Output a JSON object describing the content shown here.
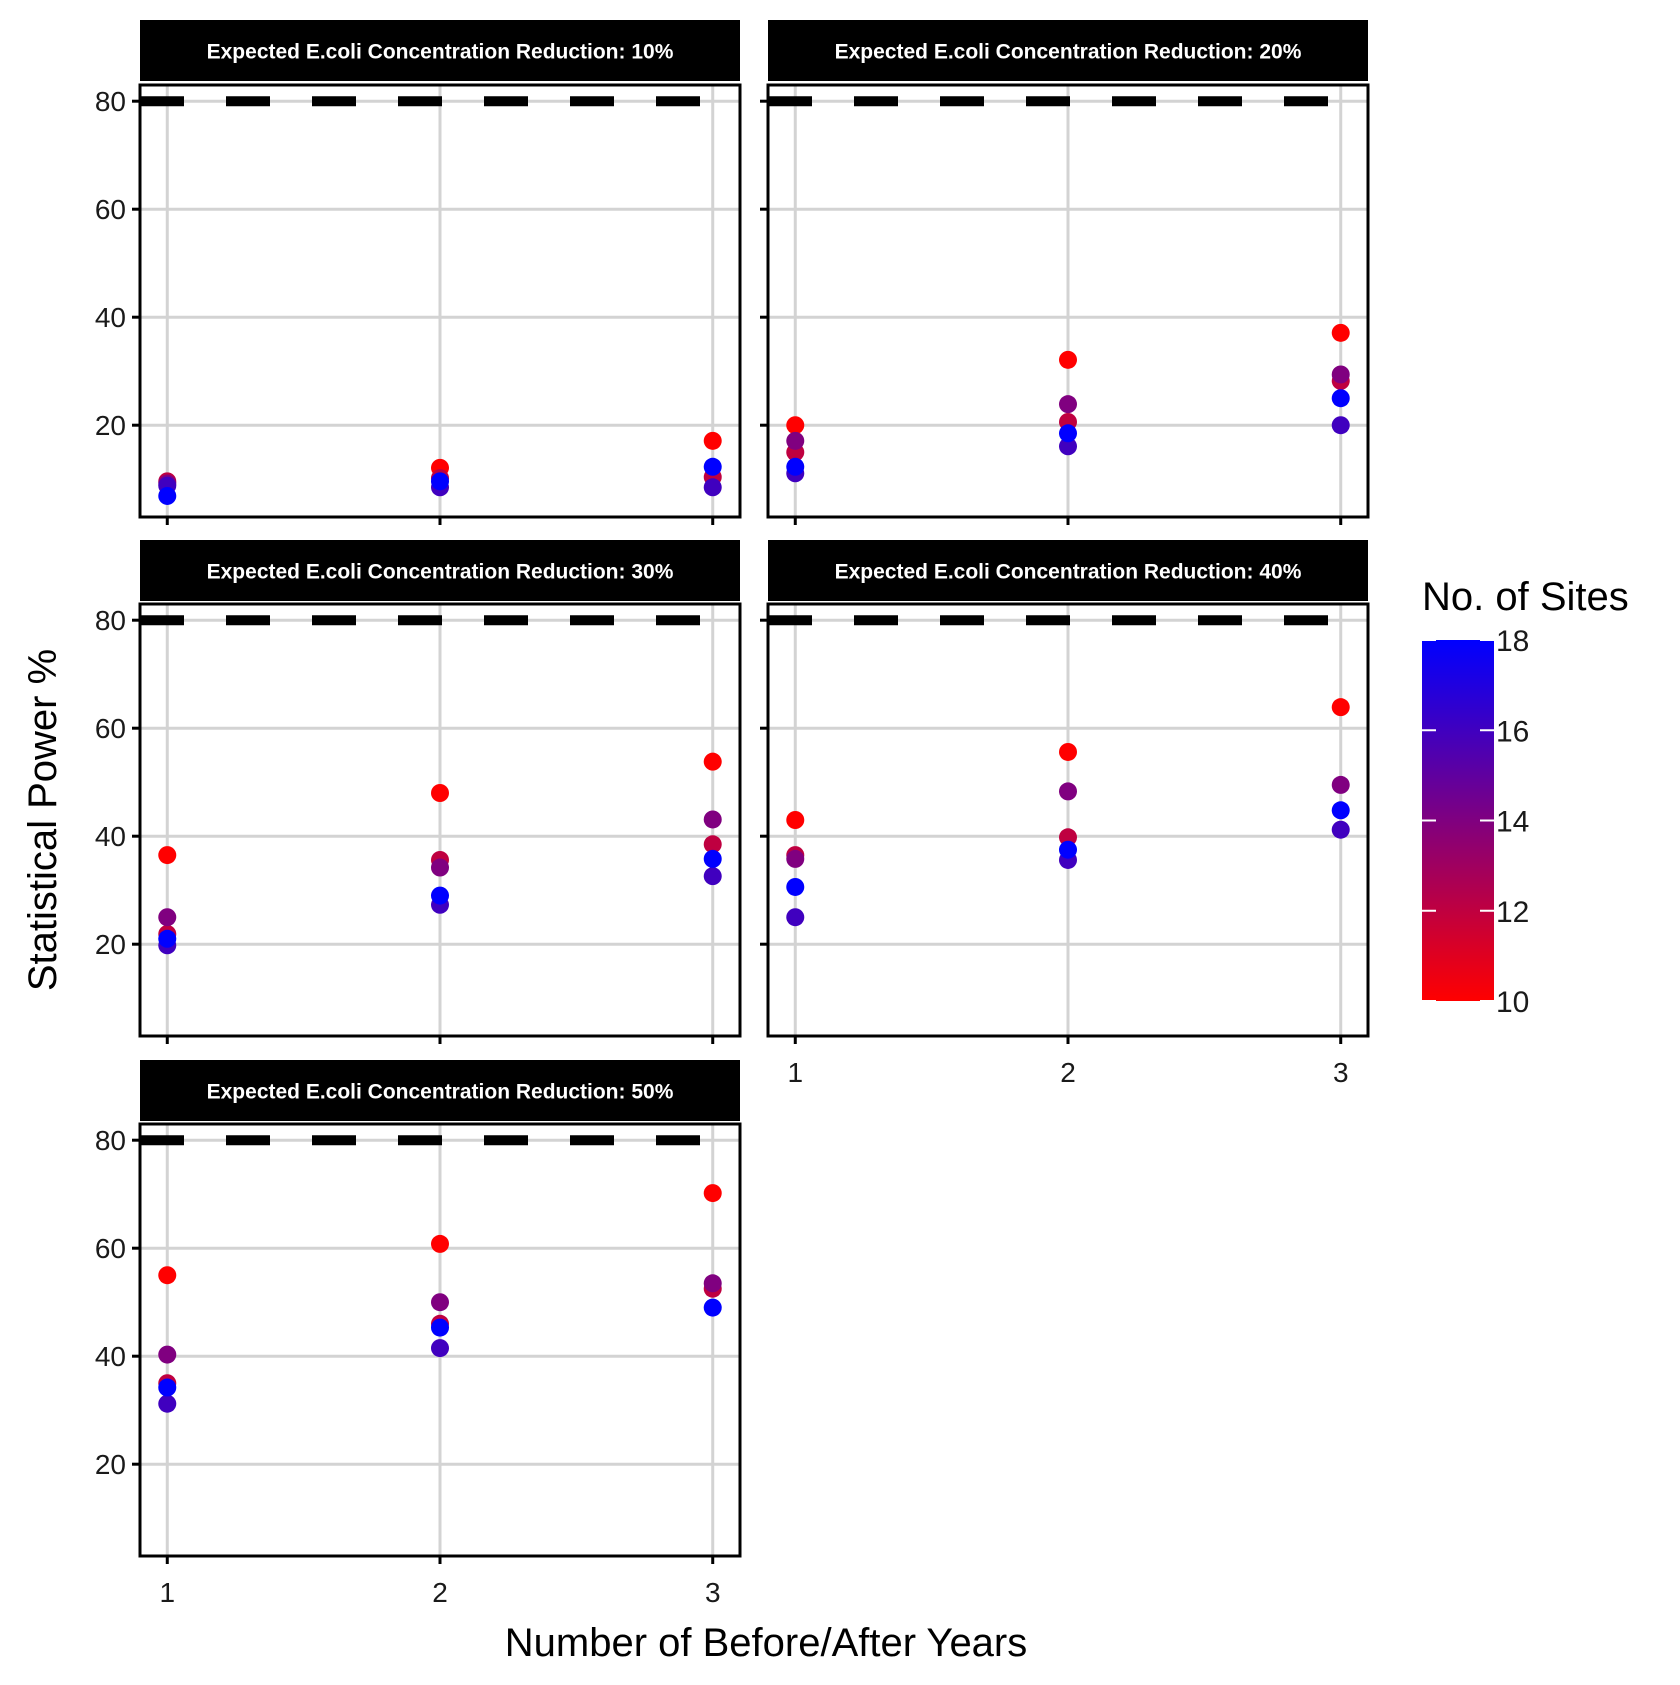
{
  "chart_data": {
    "type": "scatter",
    "facets": {
      "layout": "3 rows x 2 columns, wrapped (5 panels)",
      "panels": [
        {
          "title": "Expected E.coli Concentration Reduction: 10%",
          "points": [
            {
              "x": 1,
              "y": 9.6,
              "sites": 12
            },
            {
              "x": 1,
              "y": 9.2,
              "sites": 14
            },
            {
              "x": 1,
              "y": 8.8,
              "sites": 16
            },
            {
              "x": 1,
              "y": 6.9,
              "sites": 18
            },
            {
              "x": 2,
              "y": 12.1,
              "sites": 10
            },
            {
              "x": 2,
              "y": 10.2,
              "sites": 12
            },
            {
              "x": 2,
              "y": 8.5,
              "sites": 16
            },
            {
              "x": 2,
              "y": 9.6,
              "sites": 18
            },
            {
              "x": 3,
              "y": 17.1,
              "sites": 10
            },
            {
              "x": 3,
              "y": 10.4,
              "sites": 12
            },
            {
              "x": 3,
              "y": 8.5,
              "sites": 16
            },
            {
              "x": 3,
              "y": 12.3,
              "sites": 18
            }
          ]
        },
        {
          "title": "Expected E.coli Concentration Reduction: 20%",
          "points": [
            {
              "x": 1,
              "y": 20.0,
              "sites": 10
            },
            {
              "x": 1,
              "y": 15.0,
              "sites": 12
            },
            {
              "x": 1,
              "y": 17.1,
              "sites": 14
            },
            {
              "x": 1,
              "y": 11.1,
              "sites": 16
            },
            {
              "x": 1,
              "y": 12.3,
              "sites": 18
            },
            {
              "x": 2,
              "y": 32.1,
              "sites": 10
            },
            {
              "x": 2,
              "y": 20.6,
              "sites": 12
            },
            {
              "x": 2,
              "y": 23.9,
              "sites": 14
            },
            {
              "x": 2,
              "y": 16.1,
              "sites": 16
            },
            {
              "x": 2,
              "y": 18.5,
              "sites": 18
            },
            {
              "x": 3,
              "y": 37.1,
              "sites": 10
            },
            {
              "x": 3,
              "y": 28.2,
              "sites": 12
            },
            {
              "x": 3,
              "y": 29.4,
              "sites": 14
            },
            {
              "x": 3,
              "y": 20.0,
              "sites": 16
            },
            {
              "x": 3,
              "y": 25.0,
              "sites": 18
            }
          ]
        },
        {
          "title": "Expected E.coli Concentration Reduction: 30%",
          "points": [
            {
              "x": 1,
              "y": 36.5,
              "sites": 10
            },
            {
              "x": 1,
              "y": 21.9,
              "sites": 12
            },
            {
              "x": 1,
              "y": 25.0,
              "sites": 14
            },
            {
              "x": 1,
              "y": 19.8,
              "sites": 16
            },
            {
              "x": 1,
              "y": 21.0,
              "sites": 18
            },
            {
              "x": 2,
              "y": 48.0,
              "sites": 10
            },
            {
              "x": 2,
              "y": 35.6,
              "sites": 12
            },
            {
              "x": 2,
              "y": 34.2,
              "sites": 14
            },
            {
              "x": 2,
              "y": 27.3,
              "sites": 16
            },
            {
              "x": 2,
              "y": 29.0,
              "sites": 18
            },
            {
              "x": 3,
              "y": 53.8,
              "sites": 10
            },
            {
              "x": 3,
              "y": 38.5,
              "sites": 12
            },
            {
              "x": 3,
              "y": 43.1,
              "sites": 14
            },
            {
              "x": 3,
              "y": 32.6,
              "sites": 16
            },
            {
              "x": 3,
              "y": 35.8,
              "sites": 18
            }
          ]
        },
        {
          "title": "Expected E.coli Concentration Reduction: 40%",
          "points": [
            {
              "x": 1,
              "y": 43.0,
              "sites": 10
            },
            {
              "x": 1,
              "y": 36.5,
              "sites": 12
            },
            {
              "x": 1,
              "y": 35.8,
              "sites": 14
            },
            {
              "x": 1,
              "y": 25.0,
              "sites": 16
            },
            {
              "x": 1,
              "y": 30.6,
              "sites": 18
            },
            {
              "x": 2,
              "y": 55.6,
              "sites": 10
            },
            {
              "x": 2,
              "y": 39.8,
              "sites": 12
            },
            {
              "x": 2,
              "y": 48.3,
              "sites": 14
            },
            {
              "x": 2,
              "y": 35.6,
              "sites": 16
            },
            {
              "x": 2,
              "y": 37.5,
              "sites": 18
            },
            {
              "x": 3,
              "y": 63.9,
              "sites": 10
            },
            {
              "x": 3,
              "y": 49.5,
              "sites": 14
            },
            {
              "x": 3,
              "y": 41.2,
              "sites": 16
            },
            {
              "x": 3,
              "y": 44.8,
              "sites": 18
            }
          ]
        },
        {
          "title": "Expected E.coli Concentration Reduction: 50%",
          "points": [
            {
              "x": 1,
              "y": 55.0,
              "sites": 10
            },
            {
              "x": 1,
              "y": 35.0,
              "sites": 12
            },
            {
              "x": 1,
              "y": 40.3,
              "sites": 14
            },
            {
              "x": 1,
              "y": 31.2,
              "sites": 16
            },
            {
              "x": 1,
              "y": 34.2,
              "sites": 18
            },
            {
              "x": 2,
              "y": 60.8,
              "sites": 10
            },
            {
              "x": 2,
              "y": 46.0,
              "sites": 12
            },
            {
              "x": 2,
              "y": 50.0,
              "sites": 14
            },
            {
              "x": 2,
              "y": 41.5,
              "sites": 16
            },
            {
              "x": 2,
              "y": 45.3,
              "sites": 18
            },
            {
              "x": 3,
              "y": 70.2,
              "sites": 10
            },
            {
              "x": 3,
              "y": 52.5,
              "sites": 12
            },
            {
              "x": 3,
              "y": 53.5,
              "sites": 14
            },
            {
              "x": 3,
              "y": 49.0,
              "sites": 18
            }
          ]
        }
      ]
    },
    "xlabel": "Number of Before/After Years",
    "ylabel": "Statistical Power %",
    "x_ticks": [
      1,
      2,
      3
    ],
    "y_ticks": [
      20,
      40,
      60,
      80
    ],
    "ylim": [
      3,
      83
    ],
    "xlim": [
      0.9,
      3.1
    ],
    "reference_line": {
      "y": 80,
      "style": "dashed",
      "color": "#000000"
    },
    "grid": true,
    "legend": {
      "title": "No. of Sites",
      "type": "colorbar",
      "range": [
        10,
        18
      ],
      "ticks": [
        10,
        12,
        14,
        16,
        18
      ],
      "color_low": "#ff0000",
      "color_high": "#0000ff",
      "placement": "right"
    }
  }
}
